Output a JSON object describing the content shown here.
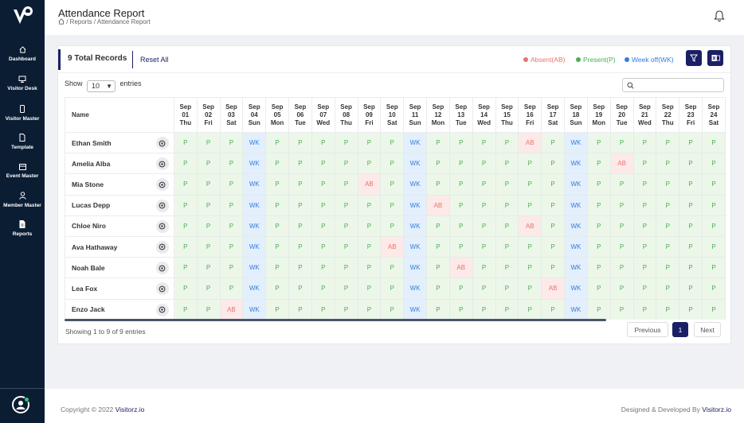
{
  "colors": {
    "sidebar": "#0b1d33",
    "primary": "#1a1f66",
    "absent": "#e9736c",
    "present": "#4caf50",
    "weekoff": "#2f7ee0"
  },
  "sidebar": {
    "items": [
      {
        "label": "Dashboard",
        "icon": "home-icon"
      },
      {
        "label": "Visitor Desk",
        "icon": "monitor-icon"
      },
      {
        "label": "Visitor Master",
        "icon": "phone-icon"
      },
      {
        "label": "Template",
        "icon": "file-icon"
      },
      {
        "label": "Event Master",
        "icon": "calendar-icon"
      },
      {
        "label": "Member Master",
        "icon": "user-icon"
      },
      {
        "label": "Reports",
        "icon": "report-icon"
      }
    ]
  },
  "header": {
    "title": "Attendance Report",
    "breadcrumb": " / Reports / Attendance Report"
  },
  "card": {
    "total_records": "9 Total Records",
    "reset_all": "Reset All",
    "legend": {
      "absent": "Absent(AB)",
      "present": "Present(P)",
      "weekoff": "Week off(WK)"
    }
  },
  "table": {
    "show_label": "Show",
    "entries_value": "10",
    "entries_label": "entries",
    "name_header": "Name",
    "days": [
      {
        "mon": "Sep",
        "day": "01",
        "dow": "Thu"
      },
      {
        "mon": "Sep",
        "day": "02",
        "dow": "Fri"
      },
      {
        "mon": "Sep",
        "day": "03",
        "dow": "Sat"
      },
      {
        "mon": "Sep",
        "day": "04",
        "dow": "Sun"
      },
      {
        "mon": "Sep",
        "day": "05",
        "dow": "Mon"
      },
      {
        "mon": "Sep",
        "day": "06",
        "dow": "Tue"
      },
      {
        "mon": "Sep",
        "day": "07",
        "dow": "Wed"
      },
      {
        "mon": "Sep",
        "day": "08",
        "dow": "Thu"
      },
      {
        "mon": "Sep",
        "day": "09",
        "dow": "Fri"
      },
      {
        "mon": "Sep",
        "day": "10",
        "dow": "Sat"
      },
      {
        "mon": "Sep",
        "day": "11",
        "dow": "Sun"
      },
      {
        "mon": "Sep",
        "day": "12",
        "dow": "Mon"
      },
      {
        "mon": "Sep",
        "day": "13",
        "dow": "Tue"
      },
      {
        "mon": "Sep",
        "day": "14",
        "dow": "Wed"
      },
      {
        "mon": "Sep",
        "day": "15",
        "dow": "Thu"
      },
      {
        "mon": "Sep",
        "day": "16",
        "dow": "Fri"
      },
      {
        "mon": "Sep",
        "day": "17",
        "dow": "Sat"
      },
      {
        "mon": "Sep",
        "day": "18",
        "dow": "Sun"
      },
      {
        "mon": "Sep",
        "day": "19",
        "dow": "Mon"
      },
      {
        "mon": "Sep",
        "day": "20",
        "dow": "Tue"
      },
      {
        "mon": "Sep",
        "day": "21",
        "dow": "Wed"
      },
      {
        "mon": "Sep",
        "day": "22",
        "dow": "Thu"
      },
      {
        "mon": "Sep",
        "day": "23",
        "dow": "Fri"
      },
      {
        "mon": "Sep",
        "day": "24",
        "dow": "Sat"
      }
    ],
    "rows": [
      {
        "name": "Ethan Smith",
        "cells": [
          "P",
          "P",
          "P",
          "WK",
          "P",
          "P",
          "P",
          "P",
          "P",
          "P",
          "WK",
          "P",
          "P",
          "P",
          "P",
          "AB",
          "P",
          "WK",
          "P",
          "P",
          "P",
          "P",
          "P",
          "P"
        ]
      },
      {
        "name": "Amelia Alba",
        "cells": [
          "P",
          "P",
          "P",
          "WK",
          "P",
          "P",
          "P",
          "P",
          "P",
          "P",
          "WK",
          "P",
          "P",
          "P",
          "P",
          "P",
          "P",
          "WK",
          "P",
          "AB",
          "P",
          "P",
          "P",
          "P"
        ]
      },
      {
        "name": "Mia Stone",
        "cells": [
          "P",
          "P",
          "P",
          "WK",
          "P",
          "P",
          "P",
          "P",
          "AB",
          "P",
          "WK",
          "P",
          "P",
          "P",
          "P",
          "P",
          "P",
          "WK",
          "P",
          "P",
          "P",
          "P",
          "P",
          "P"
        ]
      },
      {
        "name": "Lucas Depp",
        "cells": [
          "P",
          "P",
          "P",
          "WK",
          "P",
          "P",
          "P",
          "P",
          "P",
          "P",
          "WK",
          "AB",
          "P",
          "P",
          "P",
          "P",
          "P",
          "WK",
          "P",
          "P",
          "P",
          "P",
          "P",
          "P"
        ]
      },
      {
        "name": "Chloe Niro",
        "cells": [
          "P",
          "P",
          "P",
          "WK",
          "P",
          "P",
          "P",
          "P",
          "P",
          "P",
          "WK",
          "P",
          "P",
          "P",
          "P",
          "AB",
          "P",
          "WK",
          "P",
          "P",
          "P",
          "P",
          "P",
          "P"
        ]
      },
      {
        "name": "Ava Hathaway",
        "cells": [
          "P",
          "P",
          "P",
          "WK",
          "P",
          "P",
          "P",
          "P",
          "P",
          "AB",
          "WK",
          "P",
          "P",
          "P",
          "P",
          "P",
          "P",
          "WK",
          "P",
          "P",
          "P",
          "P",
          "P",
          "P"
        ]
      },
      {
        "name": "Noah Bale",
        "cells": [
          "P",
          "P",
          "P",
          "WK",
          "P",
          "P",
          "P",
          "P",
          "P",
          "P",
          "WK",
          "P",
          "AB",
          "P",
          "P",
          "P",
          "P",
          "WK",
          "P",
          "P",
          "P",
          "P",
          "P",
          "P"
        ]
      },
      {
        "name": "Lea Fox",
        "cells": [
          "P",
          "P",
          "P",
          "WK",
          "P",
          "P",
          "P",
          "P",
          "P",
          "P",
          "WK",
          "P",
          "P",
          "P",
          "P",
          "P",
          "AB",
          "WK",
          "P",
          "P",
          "P",
          "P",
          "P",
          "P"
        ]
      },
      {
        "name": "Enzo Jack",
        "cells": [
          "P",
          "P",
          "AB",
          "WK",
          "P",
          "P",
          "P",
          "P",
          "P",
          "P",
          "WK",
          "P",
          "P",
          "P",
          "P",
          "P",
          "P",
          "WK",
          "P",
          "P",
          "P",
          "P",
          "P",
          "P"
        ]
      }
    ]
  },
  "pagination": {
    "showing": "Showing 1 to 9 of 9 entries",
    "previous": "Previous",
    "current": "1",
    "next": "Next"
  },
  "footer": {
    "copyright": "Copyright © 2022 ",
    "copyright_brand": "Visitorz.io",
    "designed": "Designed & Developed By ",
    "designed_brand": "Visitorz.io"
  }
}
